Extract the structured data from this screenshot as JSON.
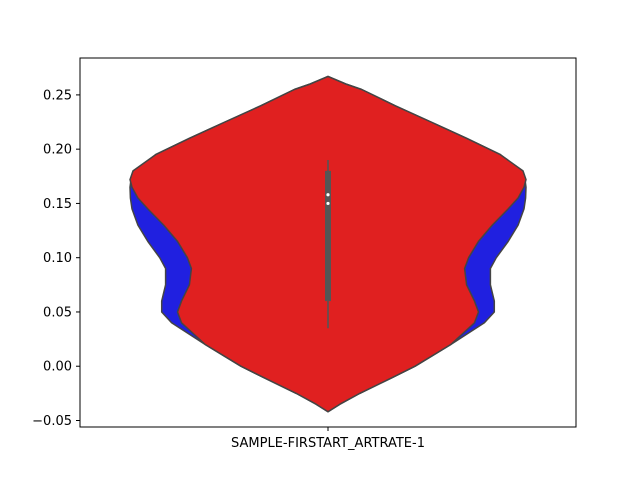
{
  "chart_data": {
    "type": "violin",
    "categories": [
      "SAMPLE-FIRSTART_ARTRATE-1"
    ],
    "ylim": [
      -0.056,
      0.284
    ],
    "yticks": [
      -0.05,
      0.0,
      0.05,
      0.1,
      0.15,
      0.2,
      0.25
    ],
    "ytick_labels": [
      "−0.05",
      "0.00",
      "0.05",
      "0.10",
      "0.15",
      "0.20",
      "0.25"
    ],
    "xlabel": "",
    "ylabel": "",
    "title": "",
    "grid": false,
    "colors": {
      "inner_violin": "#e02020",
      "outer_violin": "#2020e0",
      "outline": "#444444",
      "box": "#555555",
      "median": "#ffffff"
    },
    "violins": [
      {
        "name": "",
        "color": "#2020e0",
        "profile": [
          [
            -0.042,
            0.0
          ],
          [
            -0.035,
            0.06
          ],
          [
            -0.025,
            0.16
          ],
          [
            -0.01,
            0.33
          ],
          [
            0.0,
            0.44
          ],
          [
            0.02,
            0.62
          ],
          [
            0.04,
            0.79
          ],
          [
            0.05,
            0.84
          ],
          [
            0.06,
            0.84
          ],
          [
            0.075,
            0.82
          ],
          [
            0.09,
            0.82
          ],
          [
            0.1,
            0.85
          ],
          [
            0.115,
            0.91
          ],
          [
            0.13,
            0.96
          ],
          [
            0.145,
            0.99
          ],
          [
            0.155,
            0.998
          ],
          [
            0.165,
            1.0
          ],
          [
            0.172,
            0.995
          ],
          [
            0.18,
            0.97
          ],
          [
            0.195,
            0.87
          ],
          [
            0.21,
            0.7
          ],
          [
            0.225,
            0.52
          ],
          [
            0.24,
            0.34
          ],
          [
            0.255,
            0.17
          ],
          [
            0.26,
            0.09
          ],
          [
            0.267,
            0.0
          ]
        ]
      },
      {
        "name": "",
        "color": "#e02020",
        "profile": [
          [
            -0.042,
            0.0
          ],
          [
            -0.035,
            0.06
          ],
          [
            -0.025,
            0.16
          ],
          [
            -0.01,
            0.33
          ],
          [
            0.0,
            0.44
          ],
          [
            0.02,
            0.62
          ],
          [
            0.04,
            0.74
          ],
          [
            0.05,
            0.76
          ],
          [
            0.06,
            0.74
          ],
          [
            0.075,
            0.7
          ],
          [
            0.09,
            0.69
          ],
          [
            0.1,
            0.71
          ],
          [
            0.115,
            0.76
          ],
          [
            0.13,
            0.83
          ],
          [
            0.145,
            0.91
          ],
          [
            0.155,
            0.96
          ],
          [
            0.165,
            0.99
          ],
          [
            0.172,
            1.0
          ],
          [
            0.18,
            0.985
          ],
          [
            0.195,
            0.87
          ],
          [
            0.21,
            0.7
          ],
          [
            0.225,
            0.52
          ],
          [
            0.24,
            0.34
          ],
          [
            0.255,
            0.17
          ],
          [
            0.26,
            0.09
          ],
          [
            0.267,
            0.0
          ]
        ]
      }
    ],
    "box": {
      "whisker_low": 0.035,
      "q1": 0.06,
      "median": 0.15,
      "q3": 0.18,
      "whisker_high": 0.19
    },
    "medians": [
      0.15,
      0.158
    ]
  }
}
